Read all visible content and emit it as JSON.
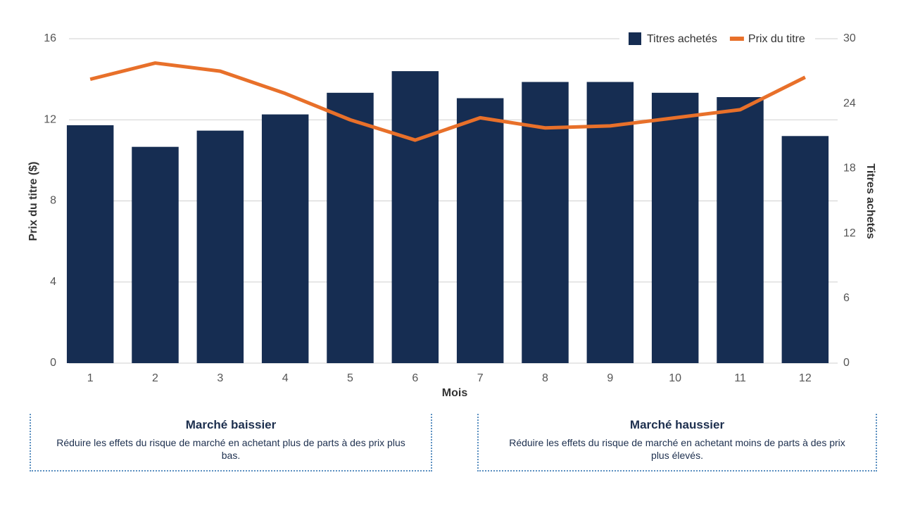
{
  "chart_data": {
    "type": "bar-line",
    "categories": [
      "1",
      "2",
      "3",
      "4",
      "5",
      "6",
      "7",
      "8",
      "9",
      "10",
      "11",
      "12"
    ],
    "x_label": "Mois",
    "y_label": "Prix du titre ($)",
    "y2_label": "Titres achetés",
    "ylim": [
      0,
      16
    ],
    "yticks": [
      0,
      4,
      8,
      12,
      16
    ],
    "y2lim": [
      0,
      30
    ],
    "y2ticks": [
      0,
      6,
      12,
      18,
      24,
      30
    ],
    "grid": true,
    "legend": "top-right",
    "series": [
      {
        "name": "Titres achetés",
        "type": "bar",
        "axis": "y2",
        "color": "#162d52",
        "values": [
          22,
          20,
          21.5,
          23,
          25,
          27,
          24.5,
          26,
          26,
          25,
          24.6,
          21
        ]
      },
      {
        "name": "Prix du titre",
        "type": "line",
        "axis": "y",
        "color": "#e8702a",
        "values": [
          14.0,
          14.8,
          14.4,
          13.3,
          12.0,
          11.0,
          12.1,
          11.6,
          11.7,
          12.1,
          12.5,
          14.1
        ]
      }
    ]
  },
  "panels": [
    {
      "title": "Marché baissier",
      "text": "Réduire les effets du risque de marché en achetant plus de parts à des prix plus bas."
    },
    {
      "title": "Marché haussier",
      "text": "Réduire les effets du risque de marché en achetant moins de parts à des prix plus élevés."
    }
  ]
}
